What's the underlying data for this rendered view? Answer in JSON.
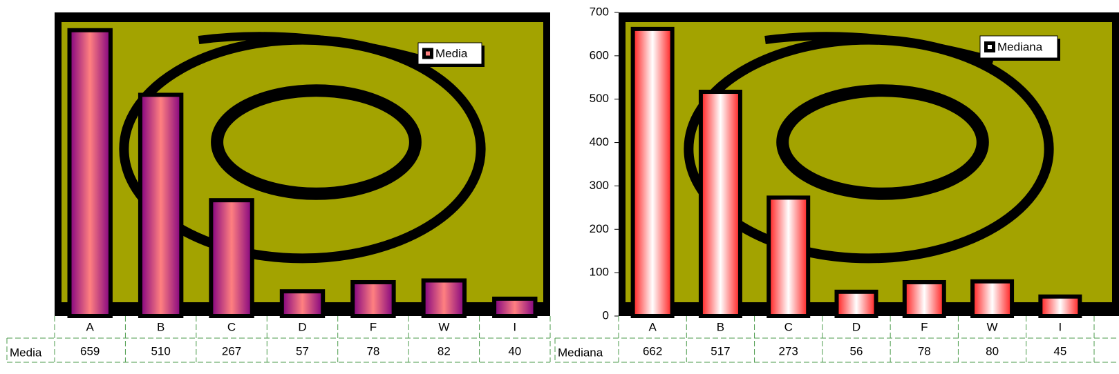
{
  "chart_data": [
    {
      "type": "bar",
      "categories": [
        "A",
        "B",
        "C",
        "D",
        "F",
        "W",
        "I"
      ],
      "series": [
        {
          "name": "Media",
          "color": "#800080",
          "highlight": "#ff8080",
          "values": [
            659,
            510,
            267,
            57,
            78,
            82,
            40
          ]
        }
      ],
      "ylim": [
        0,
        700
      ]
    },
    {
      "type": "bar",
      "categories": [
        "A",
        "B",
        "C",
        "D",
        "F",
        "W",
        "I"
      ],
      "series": [
        {
          "name": "Mediana",
          "color": "#ff1a1a",
          "highlight": "#ffffff",
          "values": [
            662,
            517,
            273,
            56,
            78,
            80,
            45
          ]
        }
      ],
      "ylim": [
        0,
        700
      ],
      "yticks": [
        0,
        100,
        200,
        300,
        400,
        500,
        600,
        700
      ]
    }
  ]
}
